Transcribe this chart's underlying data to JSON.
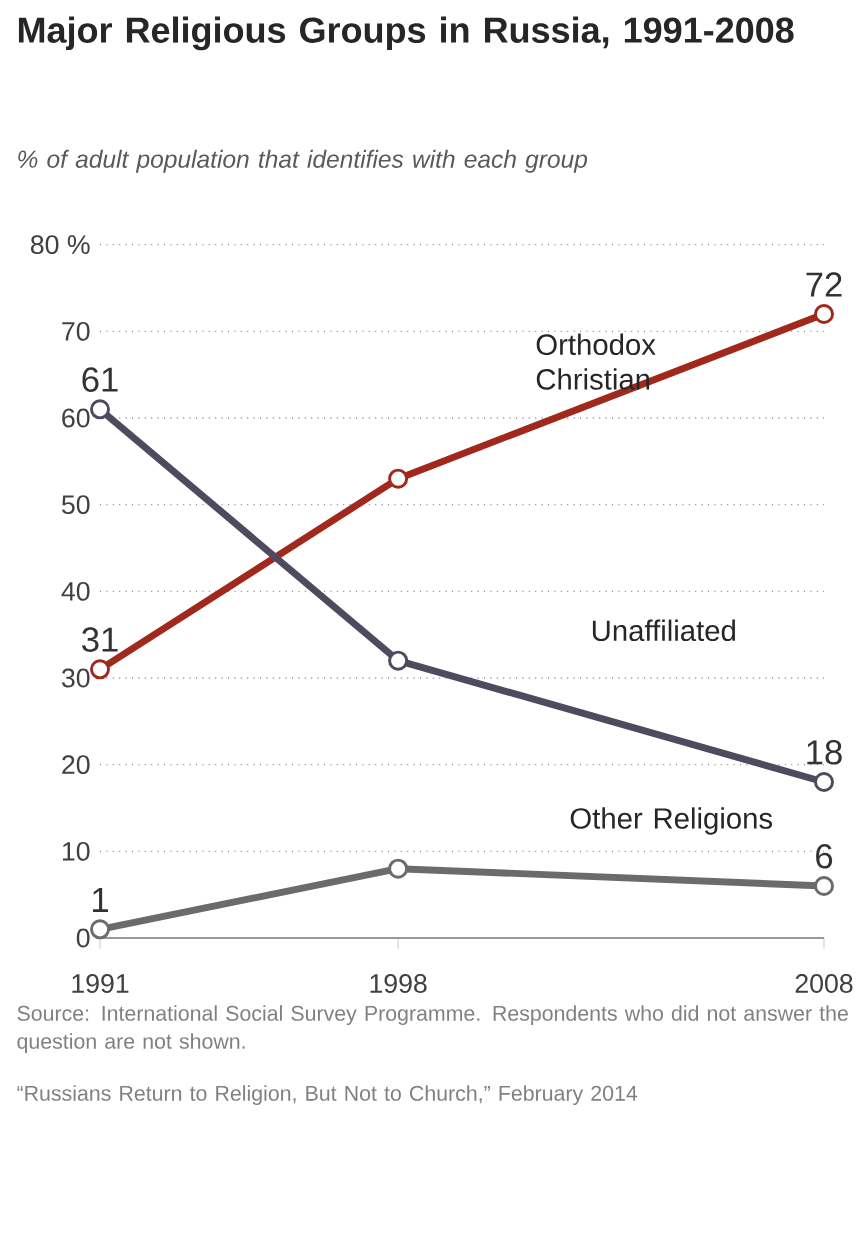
{
  "chart_data": {
    "type": "line",
    "title": "Major Religious Groups in Russia, 1991-2008",
    "subtitle": "% of adult population that identifies with each group",
    "x": [
      1991,
      1998,
      2008
    ],
    "xlim": [
      1991,
      2008
    ],
    "xticks": [
      1991,
      1998,
      2008
    ],
    "ylim": [
      0,
      80
    ],
    "yticks": [
      0,
      10,
      20,
      30,
      40,
      50,
      60,
      70,
      {
        "value": 80,
        "label": "80 %"
      }
    ],
    "grid": "y",
    "legend": false,
    "marker": "circle",
    "line_style": "solid",
    "series": [
      {
        "name": "Orthodox Christian",
        "color": "#a0281c",
        "values": [
          31,
          53,
          72
        ],
        "value_labels": [
          "31",
          null,
          "72"
        ]
      },
      {
        "name": "Unaffiliated",
        "color": "#4f4a5e",
        "values": [
          61,
          32,
          18
        ],
        "value_labels": [
          "61",
          null,
          "18"
        ]
      },
      {
        "name": "Other Religions",
        "color": "#6b6b6b",
        "values": [
          1,
          8,
          6
        ],
        "value_labels": [
          "1",
          null,
          "6"
        ]
      }
    ],
    "annotations": [
      "Source: International Social Survey Programme. Respondents who did not answer the question are not shown.",
      "“Russians Return to Religion, But Not to Church,” February 2014"
    ]
  }
}
